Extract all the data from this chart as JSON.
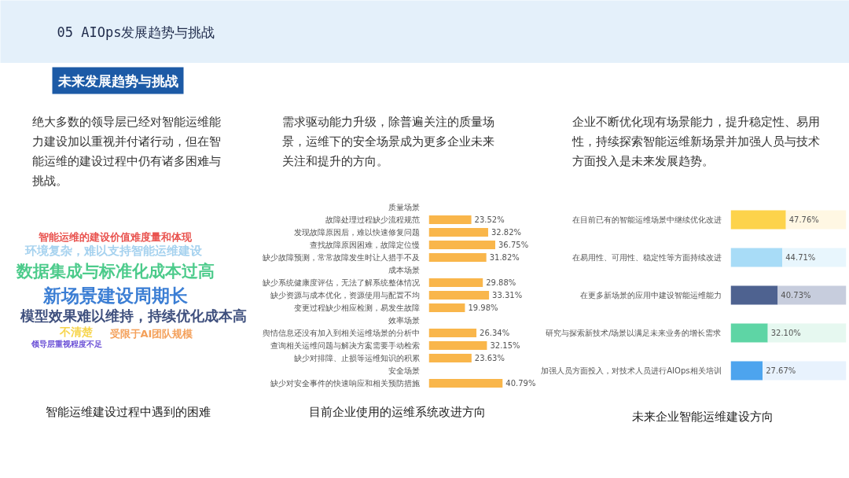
{
  "chart_data": [
    {
      "type": "other",
      "title": "05 AIOps发展趋势与挑战",
      "subtitle": "未来发展趋势与挑战"
    },
    {
      "type": "other",
      "title": "智能运维建设过程中遇到的困难",
      "subtitle": "绝大多数的领导层已经对智能运维能力建设加以重视并付诸行动，但在智能运维的建设过程中仍有诸多困难与挑战。",
      "annotations": [
        "智能运维的建设价值难度量和体现",
        "环境复杂，难以支持智能运维建设",
        "数据集成与标准化成本过高",
        "新场景建设周期长",
        "模型效果难以维持，持续优化成本高",
        "不清楚",
        "受限于AI团队规模",
        "领导层重视程度不足"
      ],
      "colors": [
        "#e9534f",
        "#a6d2ef",
        "#4ccb8b",
        "#3b7ed4",
        "#3e4f7d",
        "#f7d54e",
        "#f4a15c",
        "#6a4fd6"
      ]
    },
    {
      "type": "bar",
      "orientation": "horizontal",
      "title": "目前企业使用的运维系统改进方向",
      "subtitle": "需求驱动能力升级，除普遍关注的质量场景，运维下的安全场景成为更多企业未来关注和提升的方向。",
      "categories": [
        "质量场景",
        "故障处理过程缺少流程规范",
        "发现故障原因后，难以快速修复问题",
        "查找故障原因困难，故障定位慢",
        "缺少故障预测，常常故障发生时让人措手不及",
        "成本场景",
        "缺少系统健康度评估，无法了解系统整体情况",
        "缺少资源与成本优化，资源使用与配置不均",
        "变更过程缺少相应检测，易发生故障",
        "效率场景",
        "舆情信息还没有加入到相关运维场景的分析中",
        "查询相关运维问题与解决方案需要手动检索",
        "缺少对排障、止损等运维知识的积累",
        "安全场景",
        "缺少对安全事件的快速响应和相关预防措施"
      ],
      "values": [
        null,
        23.52,
        32.82,
        36.75,
        31.82,
        null,
        29.88,
        33.31,
        19.98,
        null,
        26.34,
        32.15,
        23.63,
        null,
        40.79
      ],
      "value_labels": [
        null,
        "23.52%",
        "32.82%",
        "36.75%",
        "31.82%",
        null,
        "29.88%",
        "33.31%",
        "19.98%",
        null,
        "26.34%",
        "32.15%",
        "23.63%",
        null,
        "40.79%"
      ],
      "color": "#f9b64b",
      "tick_labels": "y"
    },
    {
      "type": "bar",
      "orientation": "horizontal",
      "stacked": true,
      "title": "未来企业智能运维建设方向",
      "subtitle": "企业不断优化现有场景能力，提升稳定性、易用性，持续探索智能运维新场景并加强人员与技术方面投入是未来发展趋势。",
      "categories": [
        "在目前已有的智能运维场景中继续优化改进",
        "在易用性、可用性、稳定性等方面持续改进",
        "在更多新场景的应用中建设智能运维能力",
        "研究与探索新技术/场景以满足未来业务的增长需求",
        "加强人员方面投入，对技术人员进行AIOps相关培训"
      ],
      "series": [
        {
          "values": [
            47.76,
            44.71,
            40.73,
            32.1,
            27.67
          ],
          "value_labels": [
            "47.76%",
            "44.71%",
            "40.73%",
            "32.10%",
            "27.67%"
          ],
          "colors": [
            "#fdd34b",
            "#a8dcf7",
            "#4e6290",
            "#5ed5a5",
            "#4da4ee"
          ]
        },
        {
          "values": [
            52.24,
            55.29,
            59.27,
            67.9,
            72.33
          ],
          "colors": [
            "#fff7e3",
            "#e8f6fd",
            "#c7cddd",
            "#e6f8f0",
            "#e8f2fd"
          ]
        }
      ],
      "xlim": [
        0,
        100
      ],
      "tick_labels": "y"
    }
  ]
}
